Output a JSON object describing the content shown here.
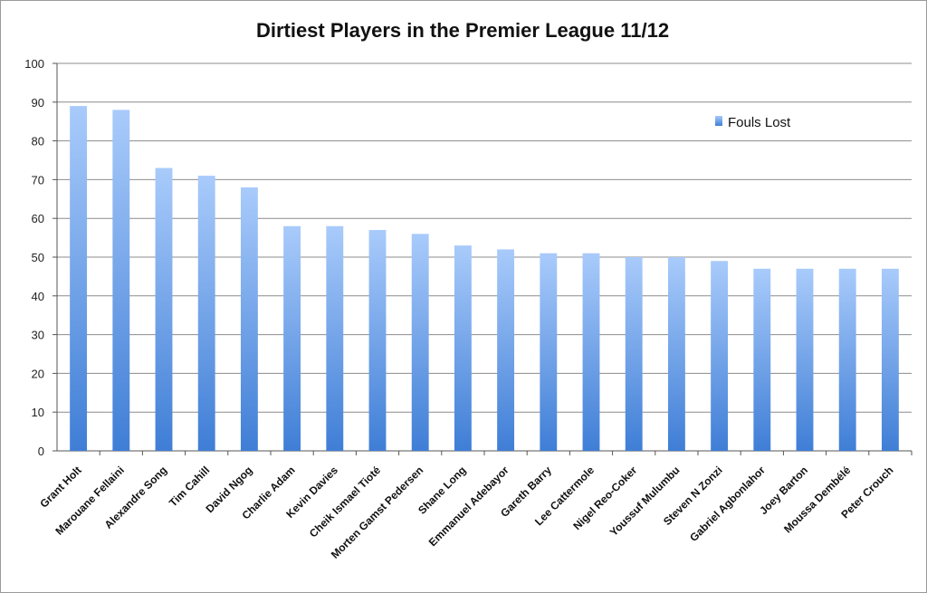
{
  "chart_data": {
    "type": "bar",
    "title": "Dirtiest Players in the Premier League 11/12",
    "xlabel": "",
    "ylabel": "",
    "ylim": [
      0,
      100
    ],
    "yticks": [
      0,
      10,
      20,
      30,
      40,
      50,
      60,
      70,
      80,
      90,
      100
    ],
    "grid": true,
    "legend_position": "top-right",
    "categories": [
      "Grant Holt",
      "Marouane Fellaini",
      "Alexandre Song",
      "Tim Cahill",
      "David Ngog",
      "Charlie Adam",
      "Kevin Davies",
      "Cheik Ismael Tioté",
      "Morten Gamst Pedersen",
      "Shane Long",
      "Emmanuel Adebayor",
      "Gareth Barry",
      "Lee Cattermole",
      "Nigel Reo-Coker",
      "Youssuf Mulumbu",
      "Steven N Zonzi",
      "Gabriel Agbonlahor",
      "Joey Barton",
      "Moussa Dembélé",
      "Peter Crouch"
    ],
    "series": [
      {
        "name": "Fouls Lost",
        "color": "#4a86d8",
        "values": [
          89,
          88,
          73,
          71,
          68,
          58,
          58,
          57,
          56,
          53,
          52,
          51,
          51,
          50,
          50,
          49,
          47,
          47,
          47,
          47
        ]
      }
    ]
  }
}
